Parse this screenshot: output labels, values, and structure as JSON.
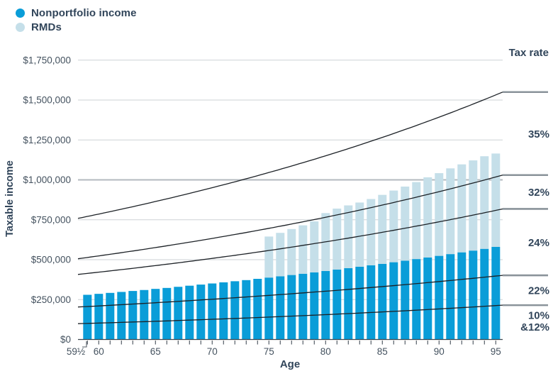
{
  "colors": {
    "bar_dark": "#0a9dd8",
    "bar_light": "#c5dfe9",
    "text_dark": "#31455a",
    "text_tick": "#44525f",
    "gridline": "#cdd2d6",
    "gridline_major": "#b3babf",
    "axis_line": "#3c454e",
    "bracket_line": "#1c2126",
    "bracket_extension": "#8a939a"
  },
  "legend": {
    "items": [
      {
        "label": "Nonportfolio income",
        "color": "#0a9dd8"
      },
      {
        "label": "RMDs",
        "color": "#c5dfe9"
      }
    ]
  },
  "y_axis": {
    "title": "Taxable income"
  },
  "x_axis": {
    "title": "Age"
  },
  "tax_rate_header": "Tax rate",
  "chart_data": {
    "type": "bar",
    "stacked": true,
    "title": "",
    "xlabel": "Age",
    "ylabel": "Taxable income",
    "ylim": [
      0,
      1750000
    ],
    "grid": "horizontal",
    "legend_position": "top-left",
    "ages": [
      59.5,
      60,
      61,
      62,
      63,
      64,
      65,
      66,
      67,
      68,
      69,
      70,
      71,
      72,
      73,
      74,
      75,
      76,
      77,
      78,
      79,
      80,
      81,
      82,
      83,
      84,
      85,
      86,
      87,
      88,
      89,
      90,
      91,
      92,
      93,
      94,
      95
    ],
    "series": [
      {
        "name": "Nonportfolio income",
        "values": [
          280000,
          286000,
          292000,
          298000,
          304000,
          310000,
          317000,
          323000,
          330000,
          337000,
          344000,
          351000,
          358000,
          365000,
          372000,
          380000,
          388000,
          396000,
          404000,
          412000,
          420000,
          429000,
          438000,
          447000,
          456000,
          465000,
          474000,
          484000,
          494000,
          504000,
          514000,
          524000,
          535000,
          546000,
          557000,
          568000,
          580000
        ]
      },
      {
        "name": "RMDs",
        "values": [
          0,
          0,
          0,
          0,
          0,
          0,
          0,
          0,
          0,
          0,
          0,
          0,
          0,
          0,
          0,
          0,
          257000,
          272000,
          288000,
          303000,
          320000,
          363000,
          382000,
          393000,
          402000,
          415000,
          432000,
          449000,
          464000,
          482000,
          502000,
          518000,
          537000,
          551000,
          565000,
          580000,
          585000
        ]
      }
    ],
    "y_ticks": [
      {
        "label": "$0",
        "value": 0
      },
      {
        "label": "$250,000",
        "value": 250000
      },
      {
        "label": "$500,000",
        "value": 500000
      },
      {
        "label": "$750,000",
        "value": 750000
      },
      {
        "label": "$1,000,000",
        "value": 1000000
      },
      {
        "label": "$1,250,000",
        "value": 1250000
      },
      {
        "label": "$1,500,000",
        "value": 1500000
      },
      {
        "label": "$1,750,000",
        "value": 1750000
      }
    ],
    "x_tick_labels": [
      {
        "label": "59½",
        "age": 59.5
      },
      {
        "label": "60",
        "age": 60
      },
      {
        "label": "65",
        "age": 65
      },
      {
        "label": "70",
        "age": 70
      },
      {
        "label": "75",
        "age": 75
      },
      {
        "label": "80",
        "age": 80
      },
      {
        "label": "85",
        "age": 85
      },
      {
        "label": "90",
        "age": 90
      },
      {
        "label": "95",
        "age": 95
      }
    ],
    "tax_header": "Tax rate",
    "tax_boundaries": [
      {
        "start": 765000,
        "end": 1550000
      },
      {
        "start": 510000,
        "end": 1030000
      },
      {
        "start": 411000,
        "end": 818000
      },
      {
        "start": 205000,
        "end": 402000
      },
      {
        "start": 100000,
        "end": 215000
      }
    ],
    "tax_rate_labels": [
      {
        "lines": [
          "35%"
        ]
      },
      {
        "lines": [
          "32%"
        ]
      },
      {
        "lines": [
          "24%"
        ]
      },
      {
        "lines": [
          "22%"
        ]
      },
      {
        "lines": [
          "10%",
          "&12%"
        ]
      }
    ]
  }
}
